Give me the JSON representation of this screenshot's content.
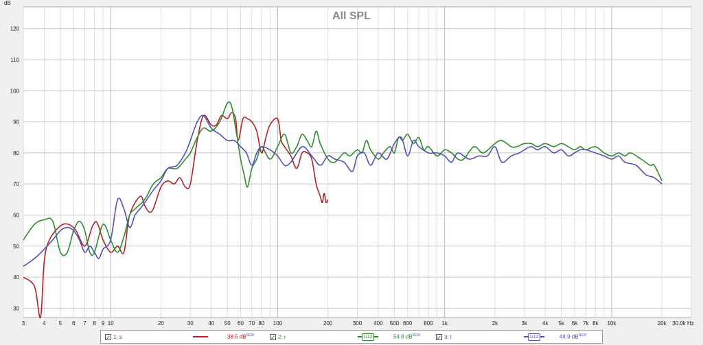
{
  "chart_data": {
    "type": "line",
    "title": "All SPL",
    "ylabel": "dB",
    "xscale": "log",
    "xlim": [
      3,
      30000
    ],
    "ylim": [
      27,
      127
    ],
    "grid": true,
    "legend_position": "bottom",
    "xticks": [
      {
        "v": 3,
        "label": "3"
      },
      {
        "v": 4,
        "label": "4"
      },
      {
        "v": 5,
        "label": "5"
      },
      {
        "v": 6,
        "label": "6"
      },
      {
        "v": 7,
        "label": "7"
      },
      {
        "v": 8,
        "label": "8"
      },
      {
        "v": 9,
        "label": "9"
      },
      {
        "v": 10,
        "label": "10"
      },
      {
        "v": 20,
        "label": "20"
      },
      {
        "v": 30,
        "label": "30"
      },
      {
        "v": 40,
        "label": "40"
      },
      {
        "v": 50,
        "label": "50"
      },
      {
        "v": 60,
        "label": "60"
      },
      {
        "v": 70,
        "label": "70"
      },
      {
        "v": 80,
        "label": "80"
      },
      {
        "v": 100,
        "label": "100"
      },
      {
        "v": 200,
        "label": "200"
      },
      {
        "v": 300,
        "label": "300"
      },
      {
        "v": 400,
        "label": "400"
      },
      {
        "v": 500,
        "label": "500"
      },
      {
        "v": 600,
        "label": "600"
      },
      {
        "v": 800,
        "label": "800"
      },
      {
        "v": 1000,
        "label": "1k"
      },
      {
        "v": 2000,
        "label": "2k"
      },
      {
        "v": 3000,
        "label": "3k"
      },
      {
        "v": 4000,
        "label": "4k"
      },
      {
        "v": 5000,
        "label": "5k"
      },
      {
        "v": 6000,
        "label": "6k"
      },
      {
        "v": 7000,
        "label": "7k"
      },
      {
        "v": 8000,
        "label": "8k"
      },
      {
        "v": 10000,
        "label": "10k"
      },
      {
        "v": 20000,
        "label": "20k"
      },
      {
        "v": 30000,
        "label": "30.0k Hz"
      }
    ],
    "yticks": [
      30,
      40,
      50,
      60,
      70,
      80,
      90,
      100,
      110,
      120
    ],
    "series": [
      {
        "name": "1: s",
        "color": "#b22222",
        "x": [
          3,
          3.5,
          3.8,
          4,
          4.3,
          5,
          5.6,
          6.2,
          7,
          7.8,
          8.3,
          9,
          10,
          11,
          12,
          13,
          15,
          16,
          17,
          18,
          20,
          22,
          24,
          26,
          28,
          30,
          33,
          36,
          40,
          43,
          46,
          50,
          53,
          56,
          58,
          62,
          66,
          70,
          75,
          80,
          85,
          90,
          100,
          105,
          110,
          120,
          130,
          140,
          150,
          160,
          170,
          180,
          185,
          190,
          195,
          200
        ],
        "y": [
          40,
          37,
          27,
          45,
          52,
          56.5,
          57,
          55,
          50,
          56.5,
          57.5,
          52,
          48,
          50,
          48,
          60,
          66,
          63,
          61,
          62,
          69,
          71,
          70,
          72,
          69,
          70,
          84,
          92,
          89,
          89,
          92,
          91,
          93,
          91,
          84,
          91,
          91,
          90,
          87,
          80,
          85,
          89,
          91,
          84,
          82,
          79,
          75,
          80,
          80,
          78,
          70,
          66,
          64,
          67,
          64,
          65
        ]
      },
      {
        "name": "2: r",
        "color": "#2e8b2e",
        "level": "54.8 dB",
        "x": [
          3,
          3.5,
          4,
          4.5,
          5,
          5.5,
          6,
          6.5,
          7,
          7.5,
          8,
          9,
          10,
          11,
          12,
          13,
          14,
          16,
          18,
          20,
          22,
          25,
          28,
          30,
          33,
          36,
          40,
          45,
          50,
          53,
          56,
          60,
          63,
          66,
          70,
          75,
          80,
          90,
          100,
          110,
          120,
          130,
          140,
          150,
          160,
          170,
          180,
          200,
          220,
          250,
          270,
          300,
          320,
          340,
          360,
          400,
          430,
          470,
          500,
          530,
          560,
          600,
          650,
          700,
          750,
          800,
          900,
          1000,
          1100,
          1200,
          1300,
          1500,
          1700,
          2000,
          2200,
          2500,
          2700,
          3000,
          3300,
          3600,
          4000,
          4500,
          5000,
          5500,
          6000,
          6500,
          7000,
          8000,
          9000,
          10000,
          11000,
          12000,
          13000,
          15000,
          17000,
          18000,
          20000
        ],
        "y": [
          52,
          57,
          58.5,
          58,
          48,
          48,
          55,
          58,
          55,
          48,
          48,
          57,
          52,
          48,
          53,
          60,
          62,
          65,
          70,
          72,
          75,
          75,
          78,
          80,
          85,
          88,
          87,
          90,
          96,
          95,
          88,
          78,
          73,
          69,
          75,
          78,
          82,
          78,
          82,
          86,
          80,
          82,
          86,
          84,
          82,
          87,
          83,
          78,
          77,
          80,
          79,
          81,
          80,
          84,
          81,
          78,
          80,
          82,
          80,
          85,
          84,
          86,
          83,
          85,
          81,
          82,
          79,
          81,
          80,
          78,
          78,
          82,
          80,
          83,
          84,
          82,
          82,
          83,
          83,
          82,
          83,
          82,
          83,
          82,
          81,
          82,
          81,
          82,
          80,
          79,
          80,
          79,
          80,
          78,
          76,
          76,
          71
        ]
      },
      {
        "name": "3: l",
        "color": "#5050b8",
        "level": "44.9 dB",
        "x": [
          3,
          3.5,
          4,
          4.5,
          5,
          5.5,
          6,
          6.5,
          7,
          7.5,
          8,
          8.5,
          9,
          10,
          11,
          12,
          13,
          14,
          15,
          16,
          18,
          20,
          22,
          25,
          28,
          30,
          33,
          36,
          40,
          45,
          50,
          55,
          60,
          65,
          70,
          75,
          80,
          90,
          100,
          110,
          120,
          140,
          160,
          180,
          200,
          220,
          250,
          280,
          300,
          330,
          360,
          400,
          450,
          500,
          550,
          600,
          650,
          700,
          800,
          900,
          1000,
          1100,
          1200,
          1400,
          1600,
          1800,
          2000,
          2200,
          2500,
          2800,
          3000,
          3300,
          3600,
          4000,
          4500,
          5000,
          5500,
          6000,
          6500,
          7000,
          8000,
          9000,
          10000,
          11000,
          12000,
          14000,
          16000,
          18000,
          20000
        ],
        "y": [
          43.5,
          46,
          49,
          52,
          55,
          56,
          55,
          52,
          48,
          50,
          48,
          46,
          49,
          52,
          65,
          62,
          56,
          60,
          62,
          64,
          68,
          71,
          75,
          76,
          80,
          84,
          90,
          92,
          88,
          86,
          84,
          84,
          82,
          80,
          76,
          80,
          82,
          81,
          79,
          76,
          77,
          82,
          79,
          76,
          79,
          78,
          77,
          74,
          79,
          80,
          76,
          80,
          78,
          83,
          85,
          79,
          84,
          82,
          80,
          80,
          79,
          77,
          80,
          78,
          79,
          79,
          82,
          77,
          79,
          80,
          81,
          82,
          81,
          82,
          80,
          81,
          79,
          80,
          81,
          81,
          80,
          79,
          78,
          79,
          77,
          76,
          73,
          72,
          70
        ]
      }
    ]
  },
  "legend": {
    "items": [
      {
        "checkbox": "☑",
        "name": "1: s",
        "color": "#b22222",
        "smoothing": "",
        "level": "38.5 dB",
        "tag": "NEW"
      },
      {
        "checkbox": "☑",
        "name": "2: r",
        "color": "#2e8b2e",
        "smoothing": "1/12",
        "level": "54.8 dB",
        "tag": "NEW"
      },
      {
        "checkbox": "☑",
        "name": "3: l",
        "color": "#5050b8",
        "smoothing": "1/12",
        "level": "44.9 dB",
        "tag": "NEW"
      }
    ]
  }
}
